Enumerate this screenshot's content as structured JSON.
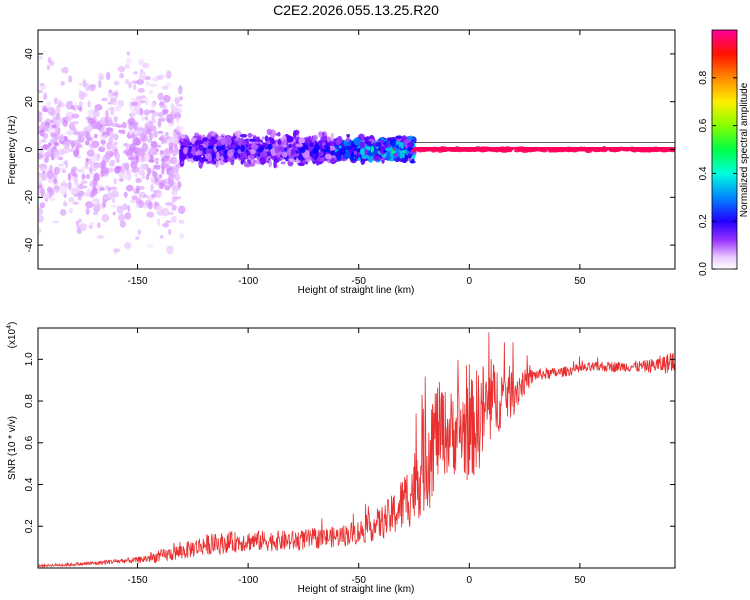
{
  "title": "C2E2.2026.055.13.25.R20",
  "chart_data": [
    {
      "type": "heatmap",
      "title": "C2E2.2026.055.13.25.R20",
      "xlabel": "Height of straight line (km)",
      "ylabel": "Frequency (Hz)",
      "xlim": [
        -195,
        93
      ],
      "ylim": [
        -50,
        50
      ],
      "xticks": [
        -150,
        -100,
        -50,
        0,
        50
      ],
      "yticks": [
        -40,
        -20,
        0,
        20,
        40
      ],
      "description_of_signal": [
        {
          "x_range": [
            -195,
            -130
          ],
          "freq_spread": 50,
          "amplitude": 0.08
        },
        {
          "x_range": [
            -130,
            -60
          ],
          "freq_spread": 8,
          "amplitude": 0.25
        },
        {
          "x_range": [
            -60,
            -25
          ],
          "freq_spread": 6,
          "amplitude": 0.45
        },
        {
          "x_range": [
            -25,
            93
          ],
          "freq_spread": 1,
          "amplitude": 0.97
        }
      ],
      "colorbar": {
        "label": "Normalized spectral amplitude",
        "range": [
          0,
          1
        ],
        "ticks": [
          0.0,
          0.2,
          0.4,
          0.6,
          0.8
        ],
        "tick_labels": [
          "0.0",
          "0.2",
          "0.4",
          "0.6",
          "0.8"
        ],
        "colormap": [
          "#ffffff",
          "#cc77ff",
          "#6600ff",
          "#0000ff",
          "#00aaff",
          "#00ffcc",
          "#00ff00",
          "#ccff00",
          "#ffcc00",
          "#ff6600",
          "#ff0000",
          "#ff0088"
        ]
      }
    },
    {
      "type": "line",
      "xlabel": "Height of straight line (km)",
      "ylabel": "SNR (10 * v/v)",
      "scale_label": "(x10",
      "scale_exponent": "4",
      "xlim": [
        -195,
        93
      ],
      "ylim": [
        0,
        1.15
      ],
      "xticks": [
        -150,
        -100,
        -50,
        0,
        50
      ],
      "yticks": [
        0.2,
        0.4,
        0.6,
        0.8,
        1.0
      ],
      "ytick_labels": [
        "0.2",
        "0.4",
        "0.6",
        "0.8",
        "1.0"
      ],
      "series": [
        {
          "name": "SNR",
          "color": "#e83030",
          "x": [
            -195,
            -180,
            -170,
            -160,
            -150,
            -140,
            -130,
            -120,
            -110,
            -100,
            -90,
            -80,
            -70,
            -60,
            -50,
            -45,
            -40,
            -35,
            -30,
            -25,
            -22,
            -20,
            -18,
            -15,
            -12,
            -10,
            -5,
            0,
            5,
            10,
            15,
            20,
            25,
            30,
            40,
            50,
            60,
            70,
            80,
            90,
            93
          ],
          "values": [
            0.01,
            0.015,
            0.02,
            0.03,
            0.035,
            0.05,
            0.07,
            0.1,
            0.11,
            0.12,
            0.12,
            0.12,
            0.13,
            0.14,
            0.16,
            0.18,
            0.2,
            0.23,
            0.28,
            0.35,
            0.42,
            0.48,
            0.52,
            0.6,
            0.62,
            0.6,
            0.62,
            0.6,
            0.68,
            0.75,
            0.8,
            0.82,
            0.88,
            0.92,
            0.93,
            0.95,
            0.96,
            0.96,
            0.96,
            0.97,
            0.98
          ],
          "noise": [
            0.005,
            0.008,
            0.01,
            0.012,
            0.015,
            0.03,
            0.04,
            0.05,
            0.05,
            0.05,
            0.05,
            0.05,
            0.05,
            0.05,
            0.06,
            0.07,
            0.08,
            0.1,
            0.14,
            0.18,
            0.22,
            0.28,
            0.3,
            0.25,
            0.22,
            0.2,
            0.22,
            0.24,
            0.26,
            0.2,
            0.15,
            0.12,
            0.06,
            0.03,
            0.025,
            0.025,
            0.025,
            0.025,
            0.03,
            0.05,
            0.05
          ]
        }
      ]
    }
  ]
}
